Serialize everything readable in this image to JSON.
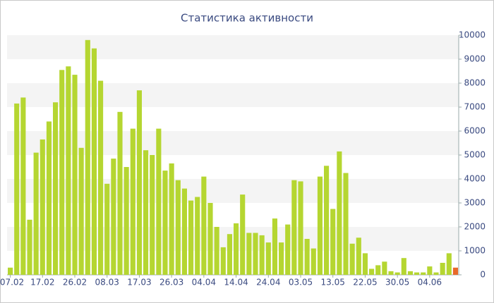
{
  "chart_data": {
    "type": "bar",
    "title": "Статистика активности",
    "categories": [
      "07.02",
      null,
      null,
      null,
      null,
      "17.02",
      null,
      null,
      null,
      null,
      "26.02",
      null,
      null,
      null,
      null,
      "08.03",
      null,
      null,
      null,
      null,
      "17.03",
      null,
      null,
      null,
      null,
      "26.03",
      null,
      null,
      null,
      null,
      "04.04",
      null,
      null,
      null,
      null,
      "14.04",
      null,
      null,
      null,
      null,
      "24.04",
      null,
      null,
      null,
      null,
      "03.05",
      null,
      null,
      null,
      null,
      "13.05",
      null,
      null,
      null,
      null,
      "22.05",
      null,
      null,
      null,
      null,
      "30.05",
      null,
      null,
      null,
      null,
      "04.06",
      null,
      null,
      null,
      null
    ],
    "values": [
      300,
      7150,
      7400,
      2300,
      5100,
      5650,
      6400,
      7200,
      8550,
      8700,
      8350,
      5300,
      9800,
      9450,
      8100,
      3800,
      4850,
      6800,
      4500,
      6100,
      7700,
      5200,
      5000,
      6100,
      4350,
      4650,
      3950,
      3600,
      3100,
      3250,
      4100,
      3000,
      2000,
      1150,
      1700,
      2150,
      3350,
      1750,
      1750,
      1650,
      1350,
      2350,
      1350,
      2100,
      3950,
      3900,
      1500,
      1100,
      4100,
      4550,
      2750,
      5150,
      4250,
      1300,
      1550,
      900,
      250,
      400,
      550,
      150,
      100,
      700,
      150,
      100,
      100,
      350,
      100,
      500,
      900,
      300
    ],
    "color": "#b5d631",
    "highlight": {
      "index": 69,
      "color": "#e8692a"
    },
    "ylim": [
      0,
      10000
    ],
    "yticks": [
      0,
      1000,
      2000,
      3000,
      4000,
      5000,
      6000,
      7000,
      8000,
      9000,
      10000
    ],
    "grid": "stripes"
  }
}
